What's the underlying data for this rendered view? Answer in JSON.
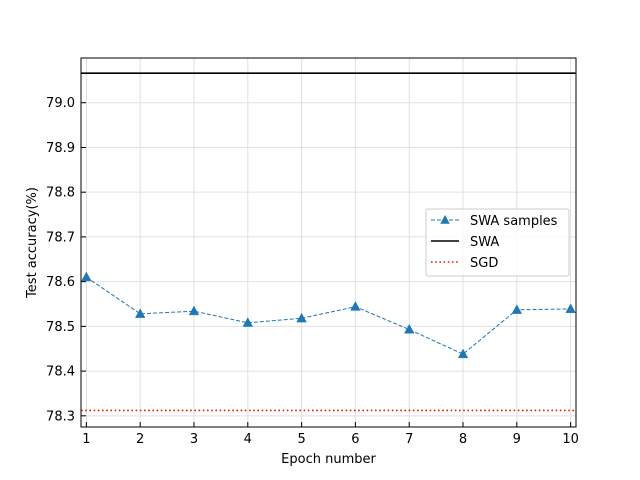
{
  "chart_data": {
    "type": "line",
    "xlabel": "Epoch number",
    "ylabel": "Test accuracy(%)",
    "xlim": [
      0.9,
      10.1
    ],
    "ylim": [
      78.275,
      79.1
    ],
    "x_ticks": [
      1,
      2,
      3,
      4,
      5,
      6,
      7,
      8,
      9,
      10
    ],
    "y_ticks": [
      78.3,
      78.4,
      78.5,
      78.6,
      78.7,
      78.8,
      78.9,
      79.0
    ],
    "y_tick_labels": [
      "78.3",
      "78.4",
      "78.5",
      "78.6",
      "78.7",
      "78.8",
      "78.9",
      "79.0"
    ],
    "grid": true,
    "legend_position": "center-right",
    "series": [
      {
        "name": "SWA samples",
        "style": "dashed-with-triangle-markers",
        "color": "#1f77b4",
        "x": [
          1,
          2,
          3,
          4,
          5,
          6,
          7,
          8,
          9,
          10
        ],
        "values": [
          78.61,
          78.528,
          78.534,
          78.508,
          78.518,
          78.544,
          78.493,
          78.438,
          78.537,
          78.539
        ]
      },
      {
        "name": "SWA",
        "style": "solid-horizontal",
        "color": "#000000",
        "value": 79.066
      },
      {
        "name": "SGD",
        "style": "dotted-horizontal",
        "color": "#e8190b",
        "value": 78.312
      }
    ]
  }
}
